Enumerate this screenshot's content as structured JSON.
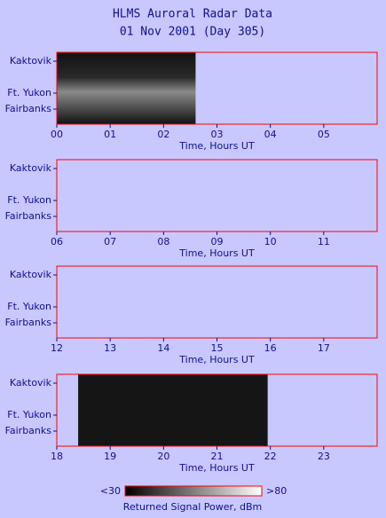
{
  "title": "HLMS Auroral Radar Data",
  "subtitle": "01 Nov 2001 (Day 305)",
  "colorbar": {
    "min_label": "<30",
    "max_label": ">80",
    "label": "Returned Signal Power, dBm"
  },
  "chart_data": [
    {
      "type": "heatmap",
      "xlabel": "Time, Hours UT",
      "stations": [
        "Kaktovik",
        "Ft. Yukon",
        "Fairbanks"
      ],
      "xlim": [
        0,
        6
      ],
      "xticks": [
        {
          "value": 0,
          "label": "00"
        },
        {
          "value": 1,
          "label": "01"
        },
        {
          "value": 2,
          "label": "02"
        },
        {
          "value": 3,
          "label": "03"
        },
        {
          "value": 4,
          "label": "04"
        },
        {
          "value": 5,
          "label": "05"
        }
      ],
      "data_span": [
        0,
        2.6
      ]
    },
    {
      "type": "heatmap",
      "xlabel": "Time, Hours UT",
      "stations": [
        "Kaktovik",
        "Ft. Yukon",
        "Fairbanks"
      ],
      "xlim": [
        6,
        12
      ],
      "xticks": [
        {
          "value": 6,
          "label": "06"
        },
        {
          "value": 7,
          "label": "07"
        },
        {
          "value": 8,
          "label": "08"
        },
        {
          "value": 9,
          "label": "09"
        },
        10,
        11
      ]
    },
    {
      "type": "heatmap",
      "xlabel": "Time, Hours UT",
      "stations": [
        "Kaktovik",
        "Ft. Yukon",
        "Fairbanks"
      ],
      "xlim": [
        12,
        18
      ],
      "xticks": [
        12,
        13,
        14,
        15,
        16,
        17
      ]
    },
    {
      "type": "heatmap",
      "xlabel": "Time, Hours UT",
      "stations": [
        "Kaktovik",
        "Ft. Yukon",
        "Fairbanks"
      ],
      "xlim": [
        18,
        24
      ],
      "xticks": [
        18,
        19,
        20,
        21,
        22,
        23
      ],
      "data_span": [
        18.4,
        21.95
      ]
    }
  ]
}
